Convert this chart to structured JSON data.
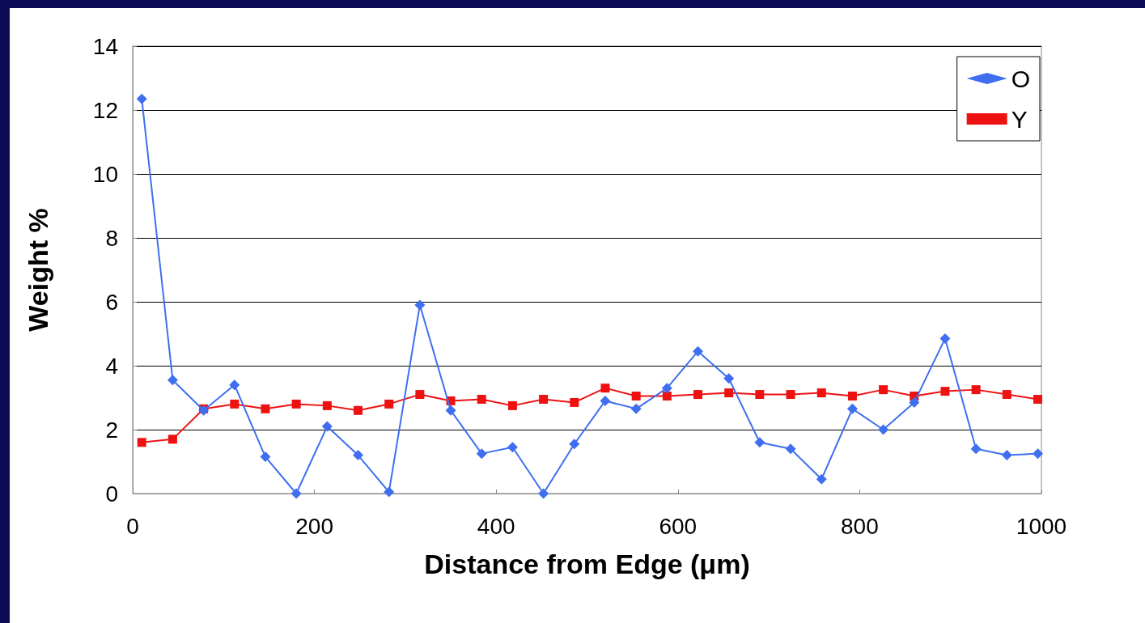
{
  "chart_data": {
    "type": "line",
    "xlabel": "Distance from Edge (μm)",
    "ylabel": "Weight %",
    "x": [
      10,
      44,
      78,
      112,
      146,
      180,
      214,
      248,
      282,
      316,
      350,
      384,
      418,
      452,
      486,
      520,
      554,
      588,
      622,
      656,
      690,
      724,
      758,
      792,
      826,
      860,
      894,
      928,
      962,
      996
    ],
    "series": [
      {
        "name": "O",
        "color": "#3f6ff0",
        "marker": "diamond",
        "values": [
          12.35,
          3.55,
          2.6,
          3.4,
          1.15,
          0,
          2.1,
          1.2,
          0.05,
          5.9,
          2.6,
          1.25,
          1.45,
          0,
          1.55,
          2.9,
          2.65,
          3.3,
          4.45,
          3.6,
          1.6,
          1.4,
          0.45,
          2.65,
          2.0,
          2.85,
          4.85,
          1.4,
          1.2,
          1.25
        ]
      },
      {
        "name": "Y",
        "color": "#ee1111",
        "marker": "square",
        "values": [
          1.6,
          1.7,
          2.65,
          2.8,
          2.65,
          2.8,
          2.75,
          2.6,
          2.8,
          3.1,
          2.9,
          2.95,
          2.75,
          2.95,
          2.85,
          3.3,
          3.05,
          3.05,
          3.1,
          3.15,
          3.1,
          3.1,
          3.15,
          3.05,
          3.25,
          3.05,
          3.2,
          3.25,
          3.1,
          2.95
        ]
      }
    ],
    "xlim": [
      0,
      1000
    ],
    "xticks": [
      0,
      200,
      400,
      600,
      800,
      1000
    ],
    "ylim": [
      0,
      14
    ],
    "yticks": [
      0,
      2,
      4,
      6,
      8,
      10,
      12,
      14
    ],
    "grid": "y",
    "legend": "top right",
    "line_style": "solid"
  }
}
